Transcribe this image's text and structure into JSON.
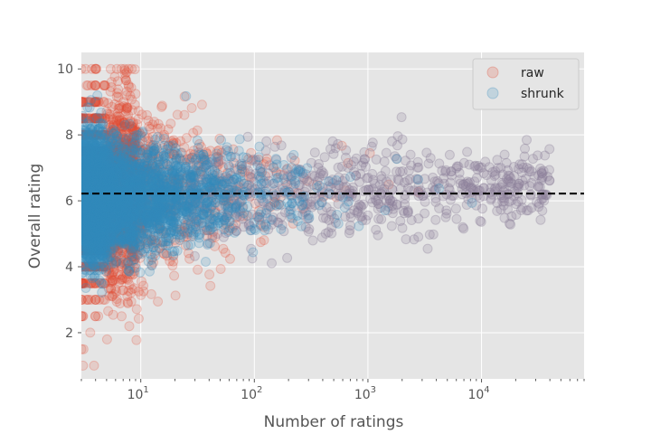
{
  "chart_data": {
    "type": "scatter",
    "title": "",
    "xlabel": "Number of ratings",
    "ylabel": "Overall rating",
    "xscale": "log",
    "xlim": [
      3,
      80000
    ],
    "ylim": [
      0.6,
      10.5
    ],
    "xticks": [
      {
        "value": 10,
        "base": "10",
        "exp": "1"
      },
      {
        "value": 100,
        "base": "10",
        "exp": "2"
      },
      {
        "value": 1000,
        "base": "10",
        "exp": "3"
      },
      {
        "value": 10000,
        "base": "10",
        "exp": "4"
      }
    ],
    "yticks": [
      {
        "value": 2,
        "label": "2"
      },
      {
        "value": 4,
        "label": "4"
      },
      {
        "value": 6,
        "label": "6"
      },
      {
        "value": 8,
        "label": "8"
      },
      {
        "value": 10,
        "label": "10"
      }
    ],
    "grid": true,
    "legend_position": "upper-right",
    "reference_line": {
      "y": 6.22,
      "style": "dashed",
      "color": "#000000"
    },
    "series": [
      {
        "name": "raw",
        "color": "#e24a33",
        "alpha": 0.15,
        "description_band": {
          "center": 6.2,
          "spread_at_min_n": 4.3,
          "spread_at_max_n": 0.8
        }
      },
      {
        "name": "shrunk",
        "color": "#348abd",
        "alpha": 0.15,
        "description_band": {
          "center": 6.2,
          "spread_at_min_n": 1.9,
          "spread_at_max_n": 0.8
        }
      }
    ]
  },
  "colors": {
    "axes_bg": "#e5e5e5",
    "grid": "#ffffff",
    "overlap": "#8c7f99"
  }
}
